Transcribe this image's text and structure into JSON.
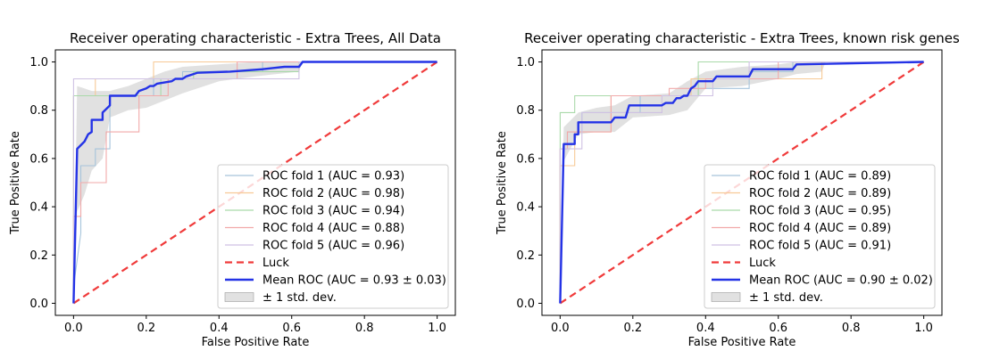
{
  "chart_data": [
    {
      "type": "line",
      "title": "Receiver operating characteristic - Extra Trees, All Data",
      "xlabel": "False Positive Rate",
      "ylabel": "True Positive Rate",
      "xlim": [
        -0.05,
        1.05
      ],
      "ylim": [
        -0.05,
        1.05
      ],
      "xticks": [
        "0.0",
        "0.2",
        "0.4",
        "0.6",
        "0.8",
        "1.0"
      ],
      "yticks": [
        "0.0",
        "0.2",
        "0.4",
        "0.6",
        "0.8",
        "1.0"
      ],
      "legend_position": "lower-right",
      "grid": false,
      "series": [
        {
          "name": "ROC fold 1 (AUC = 0.93)",
          "color": "#a6c4db",
          "kind": "fold",
          "x": [
            0,
            0,
            0.02,
            0.02,
            0.06,
            0.06,
            0.1,
            0.1,
            0.22,
            0.22,
            0.3,
            0.3,
            0.52,
            0.52,
            1.0
          ],
          "y": [
            0,
            0.07,
            0.29,
            0.57,
            0.57,
            0.64,
            0.64,
            0.86,
            0.86,
            0.93,
            0.93,
            0.96,
            0.96,
            1.0,
            1.0
          ]
        },
        {
          "name": "ROC fold 2 (AUC = 0.98)",
          "color": "#f7c996",
          "kind": "fold",
          "x": [
            0,
            0,
            0.06,
            0.06,
            0.22,
            0.22,
            1.0
          ],
          "y": [
            0,
            0.86,
            0.86,
            0.93,
            0.93,
            1.0,
            1.0
          ]
        },
        {
          "name": "ROC fold 3 (AUC = 0.94)",
          "color": "#a9d9a9",
          "kind": "fold",
          "x": [
            0,
            0,
            0.24,
            0.24,
            0.33,
            0.33,
            0.62,
            0.62,
            1.0
          ],
          "y": [
            0,
            0.86,
            0.86,
            0.93,
            0.93,
            0.96,
            0.96,
            1.0,
            1.0
          ]
        },
        {
          "name": "ROC fold 4 (AUC = 0.88)",
          "color": "#f1a9a9",
          "kind": "fold",
          "x": [
            0,
            0,
            0.02,
            0.02,
            0.04,
            0.04,
            0.09,
            0.09,
            0.18,
            0.18,
            0.26,
            0.26,
            0.45,
            0.45,
            1.0
          ],
          "y": [
            0,
            0.36,
            0.36,
            0.5,
            0.5,
            0.5,
            0.5,
            0.71,
            0.71,
            0.86,
            0.86,
            0.93,
            0.93,
            1.0,
            1.0
          ]
        },
        {
          "name": "ROC fold 5 (AUC = 0.96)",
          "color": "#cfc1e3",
          "kind": "fold",
          "x": [
            0,
            0,
            0.22,
            0.22,
            0.62,
            0.62,
            1.0
          ],
          "y": [
            0,
            0.93,
            0.93,
            0.93,
            0.93,
            1.0,
            1.0
          ]
        },
        {
          "name": "Luck",
          "color": "#f03a3a",
          "kind": "luck",
          "x": [
            0,
            1
          ],
          "y": [
            0,
            1
          ]
        },
        {
          "name": "Mean ROC (AUC = 0.93 ± 0.03)",
          "color": "#2433e6",
          "kind": "mean",
          "x": [
            0,
            0.01,
            0.03,
            0.04,
            0.05,
            0.05,
            0.08,
            0.08,
            0.1,
            0.1,
            0.17,
            0.18,
            0.2,
            0.21,
            0.22,
            0.23,
            0.27,
            0.28,
            0.3,
            0.31,
            0.33,
            0.34,
            0.43,
            0.52,
            0.55,
            0.58,
            0.62,
            0.63,
            1.0
          ],
          "y": [
            0,
            0.64,
            0.67,
            0.7,
            0.71,
            0.76,
            0.76,
            0.79,
            0.82,
            0.86,
            0.86,
            0.88,
            0.89,
            0.9,
            0.9,
            0.91,
            0.92,
            0.93,
            0.93,
            0.94,
            0.95,
            0.955,
            0.96,
            0.97,
            0.975,
            0.98,
            0.98,
            1.0,
            1.0
          ]
        },
        {
          "name": "± 1 std. dev.",
          "color": "#bdbdbd",
          "kind": "band",
          "x": [
            0,
            0.01,
            0.03,
            0.05,
            0.08,
            0.1,
            0.15,
            0.2,
            0.25,
            0.3,
            0.4,
            0.5,
            0.62,
            0.63,
            1.0
          ],
          "upper": [
            0,
            0.9,
            0.89,
            0.88,
            0.88,
            0.88,
            0.9,
            0.93,
            0.96,
            0.98,
            0.99,
            1.0,
            1.0,
            1.0,
            1.0
          ],
          "lower": [
            0,
            0.38,
            0.45,
            0.55,
            0.6,
            0.77,
            0.8,
            0.81,
            0.84,
            0.87,
            0.92,
            0.94,
            0.96,
            1.0,
            1.0
          ]
        }
      ]
    },
    {
      "type": "line",
      "title": "Receiver operating characteristic - Extra Trees, known risk genes",
      "xlabel": "False Positive Rate",
      "ylabel": "True Positive Rate",
      "xlim": [
        -0.05,
        1.05
      ],
      "ylim": [
        -0.05,
        1.05
      ],
      "xticks": [
        "0.0",
        "0.2",
        "0.4",
        "0.6",
        "0.8",
        "1.0"
      ],
      "yticks": [
        "0.0",
        "0.2",
        "0.4",
        "0.6",
        "0.8",
        "1.0"
      ],
      "legend_position": "lower-right",
      "grid": false,
      "series": [
        {
          "name": "ROC fold 1 (AUC = 0.89)",
          "color": "#a6c4db",
          "kind": "fold",
          "x": [
            0,
            0,
            0.02,
            0.02,
            0.06,
            0.06,
            0.22,
            0.22,
            0.36,
            0.36,
            0.52,
            0.52,
            0.64,
            0.64,
            1.0
          ],
          "y": [
            0,
            0.64,
            0.64,
            0.71,
            0.71,
            0.79,
            0.79,
            0.86,
            0.86,
            0.89,
            0.89,
            0.96,
            0.96,
            1.0,
            1.0
          ]
        },
        {
          "name": "ROC fold 2 (AUC = 0.89)",
          "color": "#f7c996",
          "kind": "fold",
          "x": [
            0,
            0,
            0.04,
            0.04,
            0.14,
            0.14,
            0.36,
            0.36,
            0.72,
            0.72,
            1.0
          ],
          "y": [
            0,
            0.57,
            0.57,
            0.71,
            0.71,
            0.86,
            0.86,
            0.93,
            0.93,
            1.0,
            1.0
          ]
        },
        {
          "name": "ROC fold 3 (AUC = 0.95)",
          "color": "#a9d9a9",
          "kind": "fold",
          "x": [
            0,
            0,
            0.04,
            0.04,
            0.38,
            0.38,
            1.0
          ],
          "y": [
            0,
            0.79,
            0.79,
            0.86,
            0.86,
            1.0,
            1.0
          ]
        },
        {
          "name": "ROC fold 4 (AUC = 0.89)",
          "color": "#f1a9a9",
          "kind": "fold",
          "x": [
            0,
            0,
            0.02,
            0.02,
            0.14,
            0.14,
            0.3,
            0.3,
            0.4,
            0.4,
            0.6,
            0.6,
            1.0
          ],
          "y": [
            0,
            0.64,
            0.64,
            0.71,
            0.71,
            0.86,
            0.86,
            0.89,
            0.89,
            0.93,
            0.93,
            1.0,
            1.0
          ]
        },
        {
          "name": "ROC fold 5 (AUC = 0.91)",
          "color": "#cfc1e3",
          "kind": "fold",
          "x": [
            0,
            0,
            0.06,
            0.06,
            0.28,
            0.28,
            0.42,
            0.42,
            0.52,
            0.52,
            1.0
          ],
          "y": [
            0,
            0.64,
            0.64,
            0.79,
            0.79,
            0.86,
            0.86,
            0.93,
            0.93,
            1.0,
            1.0
          ]
        },
        {
          "name": "Luck",
          "color": "#f03a3a",
          "kind": "luck",
          "x": [
            0,
            1
          ],
          "y": [
            0,
            1
          ]
        },
        {
          "name": "Mean ROC (AUC = 0.90 ± 0.02)",
          "color": "#2433e6",
          "kind": "mean",
          "x": [
            0,
            0.01,
            0.04,
            0.04,
            0.05,
            0.05,
            0.14,
            0.15,
            0.18,
            0.19,
            0.28,
            0.29,
            0.31,
            0.32,
            0.33,
            0.34,
            0.35,
            0.36,
            0.37,
            0.38,
            0.42,
            0.43,
            0.52,
            0.53,
            0.64,
            0.65,
            1.0
          ],
          "y": [
            0,
            0.66,
            0.66,
            0.7,
            0.7,
            0.75,
            0.75,
            0.77,
            0.77,
            0.82,
            0.82,
            0.83,
            0.83,
            0.85,
            0.85,
            0.86,
            0.86,
            0.89,
            0.9,
            0.92,
            0.92,
            0.94,
            0.94,
            0.97,
            0.97,
            0.99,
            1.0
          ]
        },
        {
          "name": "± 1 std. dev.",
          "color": "#bdbdbd",
          "kind": "band",
          "x": [
            0,
            0.01,
            0.05,
            0.1,
            0.15,
            0.2,
            0.3,
            0.35,
            0.4,
            0.5,
            0.6,
            0.65,
            0.72,
            0.73,
            1.0
          ],
          "upper": [
            0,
            0.73,
            0.79,
            0.81,
            0.82,
            0.86,
            0.87,
            0.92,
            0.96,
            0.98,
            0.99,
            1.0,
            1.0,
            1.0,
            1.0
          ],
          "lower": [
            0,
            0.59,
            0.7,
            0.71,
            0.71,
            0.77,
            0.78,
            0.8,
            0.89,
            0.9,
            0.93,
            0.95,
            0.96,
            1.0,
            1.0
          ]
        }
      ]
    }
  ]
}
